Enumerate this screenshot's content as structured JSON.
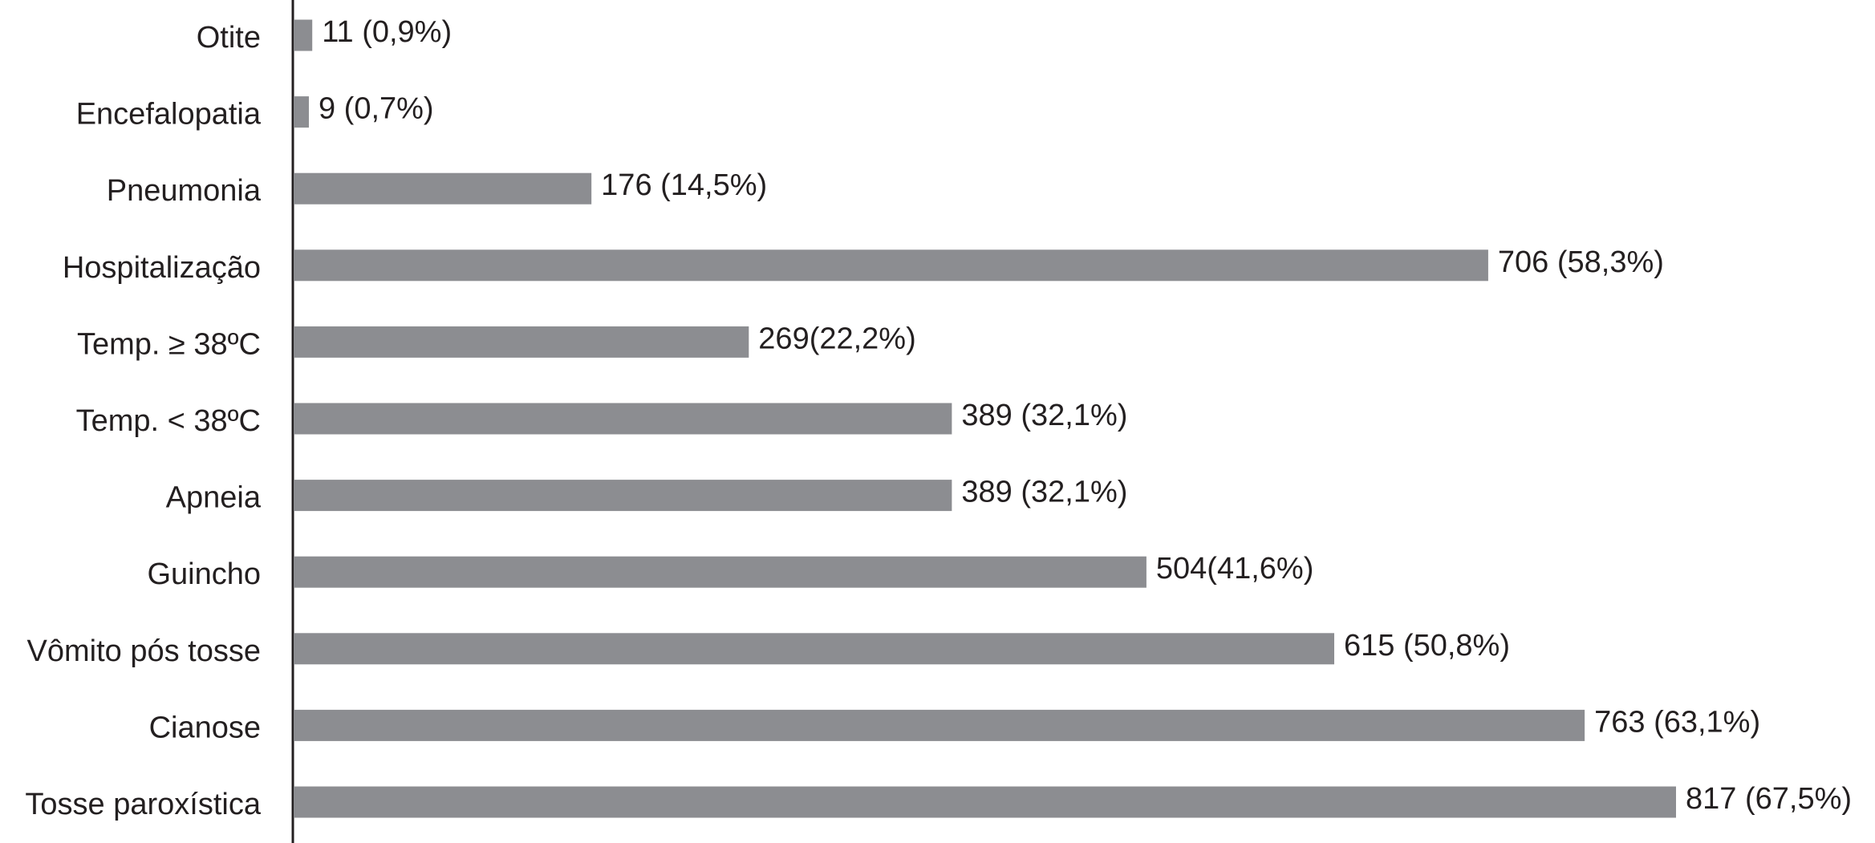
{
  "chart_data": {
    "type": "bar",
    "orientation": "horizontal",
    "categories": [
      "Otite",
      "Encefalopatia",
      "Pneumonia",
      "Hospitalização",
      "Temp. ≥ 38ºC",
      "Temp. < 38ºC",
      "Apneia",
      "Guincho",
      "Vômito pós tosse",
      "Cianose",
      "Tosse paroxística"
    ],
    "values": [
      11,
      9,
      176,
      706,
      269,
      389,
      389,
      504,
      615,
      763,
      817
    ],
    "value_labels": [
      "11 (0,9%)",
      "9 (0,7%)",
      "176 (14,5%)",
      "706 (58,3%)",
      "269(22,2%)",
      "389 (32,1%)",
      "389 (32,1%)",
      "504(41,6%)",
      "615 (50,8%)",
      "763 (63,1%)",
      "817 (67,5%)"
    ],
    "color": "#8c8d91"
  }
}
